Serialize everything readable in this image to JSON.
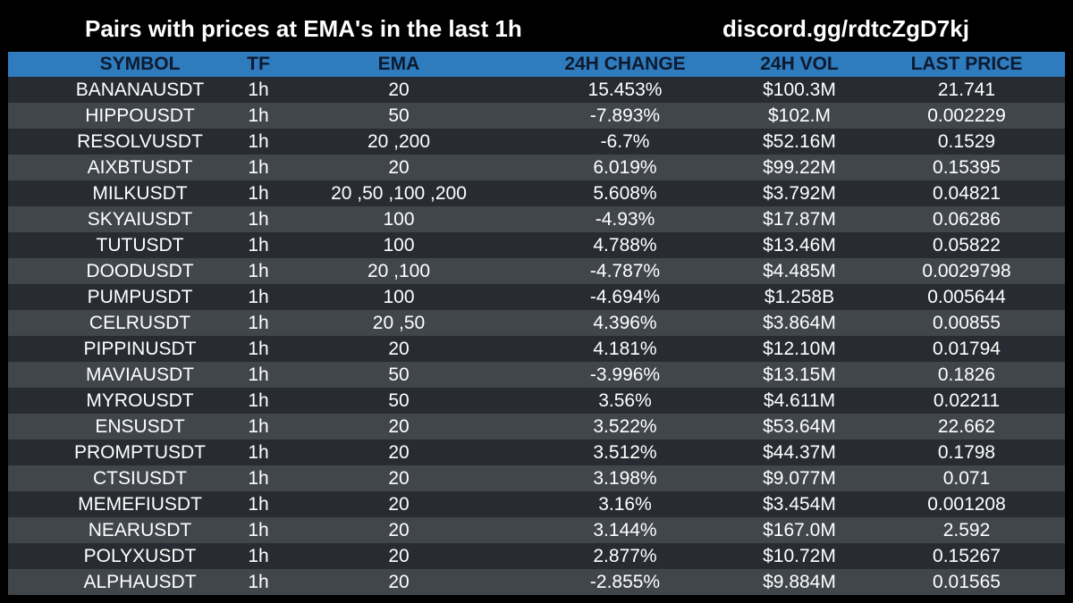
{
  "header": {
    "title": "Pairs with prices at EMA's in the last 1h",
    "link": "discord.gg/rdtcZgD7kj"
  },
  "colors": {
    "background": "#000000",
    "header_bar": "#2e7bbd",
    "header_text": "#0d1a2e",
    "row_dark": "#282c32",
    "row_light": "#41464c",
    "text": "#ffffff"
  },
  "table": {
    "columns": [
      "SYMBOL",
      "TF",
      "EMA",
      "24H CHANGE",
      "24H VOL",
      "LAST PRICE"
    ],
    "rows": [
      [
        "BANANAUSDT",
        "1h",
        "20",
        "15.453%",
        "$100.3M",
        "21.741"
      ],
      [
        "HIPPOUSDT",
        "1h",
        "50",
        "-7.893%",
        "$102.M",
        "0.002229"
      ],
      [
        "RESOLVUSDT",
        "1h",
        "20 ,200",
        "-6.7%",
        "$52.16M",
        "0.1529"
      ],
      [
        "AIXBTUSDT",
        "1h",
        "20",
        "6.019%",
        "$99.22M",
        "0.15395"
      ],
      [
        "MILKUSDT",
        "1h",
        "20 ,50 ,100 ,200",
        "5.608%",
        "$3.792M",
        "0.04821"
      ],
      [
        "SKYAIUSDT",
        "1h",
        "100",
        "-4.93%",
        "$17.87M",
        "0.06286"
      ],
      [
        "TUTUSDT",
        "1h",
        "100",
        "4.788%",
        "$13.46M",
        "0.05822"
      ],
      [
        "DOODUSDT",
        "1h",
        "20 ,100",
        "-4.787%",
        "$4.485M",
        "0.0029798"
      ],
      [
        "PUMPUSDT",
        "1h",
        "100",
        "-4.694%",
        "$1.258B",
        "0.005644"
      ],
      [
        "CELRUSDT",
        "1h",
        "20 ,50",
        "4.396%",
        "$3.864M",
        "0.00855"
      ],
      [
        "PIPPINUSDT",
        "1h",
        "20",
        "4.181%",
        "$12.10M",
        "0.01794"
      ],
      [
        "MAVIAUSDT",
        "1h",
        "50",
        "-3.996%",
        "$13.15M",
        "0.1826"
      ],
      [
        "MYROUSDT",
        "1h",
        "50",
        "3.56%",
        "$4.611M",
        "0.02211"
      ],
      [
        "ENSUSDT",
        "1h",
        "20",
        "3.522%",
        "$53.64M",
        "22.662"
      ],
      [
        "PROMPTUSDT",
        "1h",
        "20",
        "3.512%",
        "$44.37M",
        "0.1798"
      ],
      [
        "CTSIUSDT",
        "1h",
        "20",
        "3.198%",
        "$9.077M",
        "0.071"
      ],
      [
        "MEMEFIUSDT",
        "1h",
        "20",
        "3.16%",
        "$3.454M",
        "0.001208"
      ],
      [
        "NEARUSDT",
        "1h",
        "20",
        "3.144%",
        "$167.0M",
        "2.592"
      ],
      [
        "POLYXUSDT",
        "1h",
        "20",
        "2.877%",
        "$10.72M",
        "0.15267"
      ],
      [
        "ALPHAUSDT",
        "1h",
        "20",
        "-2.855%",
        "$9.884M",
        "0.01565"
      ]
    ]
  }
}
